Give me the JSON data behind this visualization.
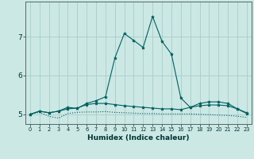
{
  "xlabel": "Humidex (Indice chaleur)",
  "ylabel": "",
  "background_color": "#cce8e4",
  "grid_color": "#aaccc8",
  "line_color": "#006060",
  "x_values": [
    0,
    1,
    2,
    3,
    4,
    5,
    6,
    7,
    8,
    9,
    10,
    11,
    12,
    13,
    14,
    15,
    16,
    17,
    18,
    19,
    20,
    21,
    22,
    23
  ],
  "series": [
    [
      5.0,
      5.05,
      4.95,
      4.9,
      5.02,
      5.05,
      5.06,
      5.06,
      5.07,
      5.05,
      5.04,
      5.03,
      5.02,
      5.02,
      5.01,
      5.01,
      5.01,
      5.01,
      5.0,
      4.99,
      4.98,
      4.97,
      4.95,
      4.92
    ],
    [
      5.0,
      5.08,
      5.04,
      5.08,
      5.14,
      5.16,
      5.25,
      5.28,
      5.28,
      5.25,
      5.22,
      5.2,
      5.18,
      5.16,
      5.14,
      5.14,
      5.12,
      5.18,
      5.22,
      5.24,
      5.24,
      5.22,
      5.14,
      5.04
    ],
    [
      5.0,
      5.08,
      5.04,
      5.08,
      5.18,
      5.15,
      5.28,
      5.35,
      5.45,
      6.45,
      7.08,
      6.9,
      6.72,
      7.52,
      6.88,
      6.55,
      5.42,
      5.18,
      5.28,
      5.32,
      5.32,
      5.28,
      5.14,
      5.02
    ]
  ],
  "series_with_markers": [
    false,
    true,
    true
  ],
  "yticks": [
    5,
    6,
    7
  ],
  "ylim": [
    4.75,
    7.9
  ],
  "xlim": [
    -0.5,
    23.5
  ]
}
